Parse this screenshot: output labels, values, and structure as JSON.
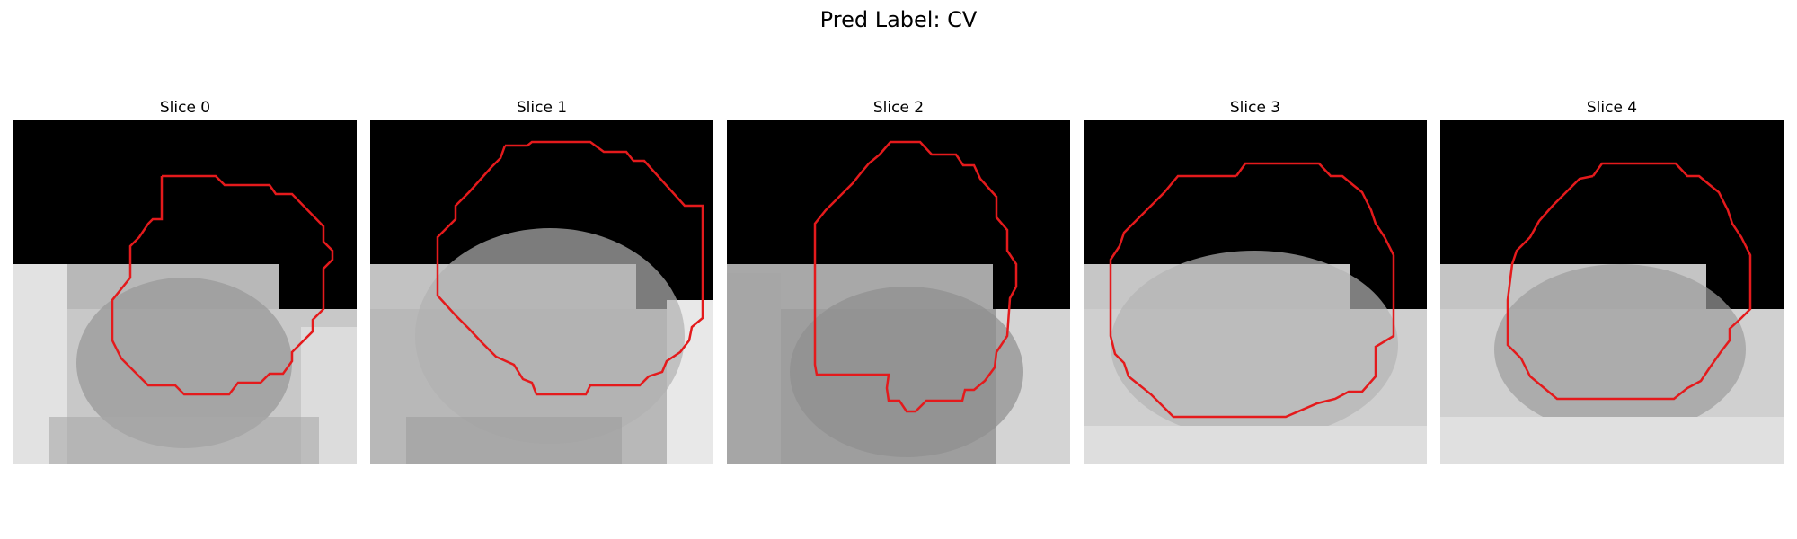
{
  "figure": {
    "title": "Pred Label: CV",
    "contour_color": "#e41a1c"
  },
  "slices": [
    {
      "title": "Slice 0"
    },
    {
      "title": "Slice 1"
    },
    {
      "title": "Slice 2"
    },
    {
      "title": "Slice 3"
    },
    {
      "title": "Slice 4"
    }
  ]
}
